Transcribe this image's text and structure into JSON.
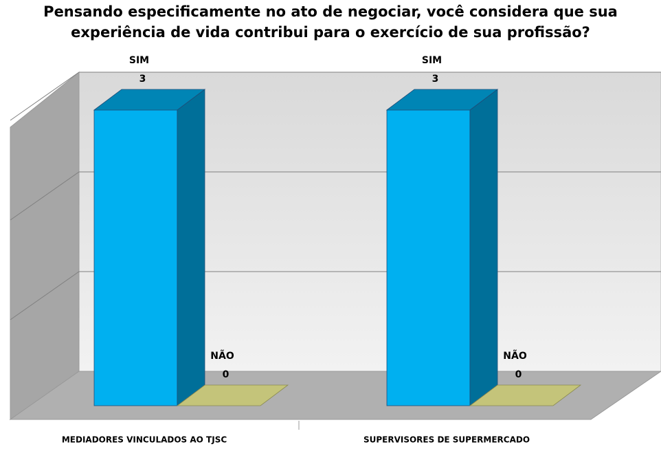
{
  "chart_data": {
    "type": "bar3d",
    "title": "Pensando especificamente no ato de negociar, você considera que sua experiência de vida contribui para o exercício de sua profissão?",
    "categories": [
      "MEDIADORES VINCULADOS AO TJSC",
      "SUPERVISORES DE SUPERMERCADO"
    ],
    "series": [
      {
        "name": "SIM",
        "color": "#00b0f0",
        "values": [
          3,
          3
        ]
      },
      {
        "name": "NÃO",
        "color": "#c4c47a",
        "values": [
          0,
          0
        ]
      }
    ],
    "ylim": [
      0,
      3
    ],
    "yticks": [
      0,
      1,
      2,
      3
    ],
    "grid": true
  }
}
